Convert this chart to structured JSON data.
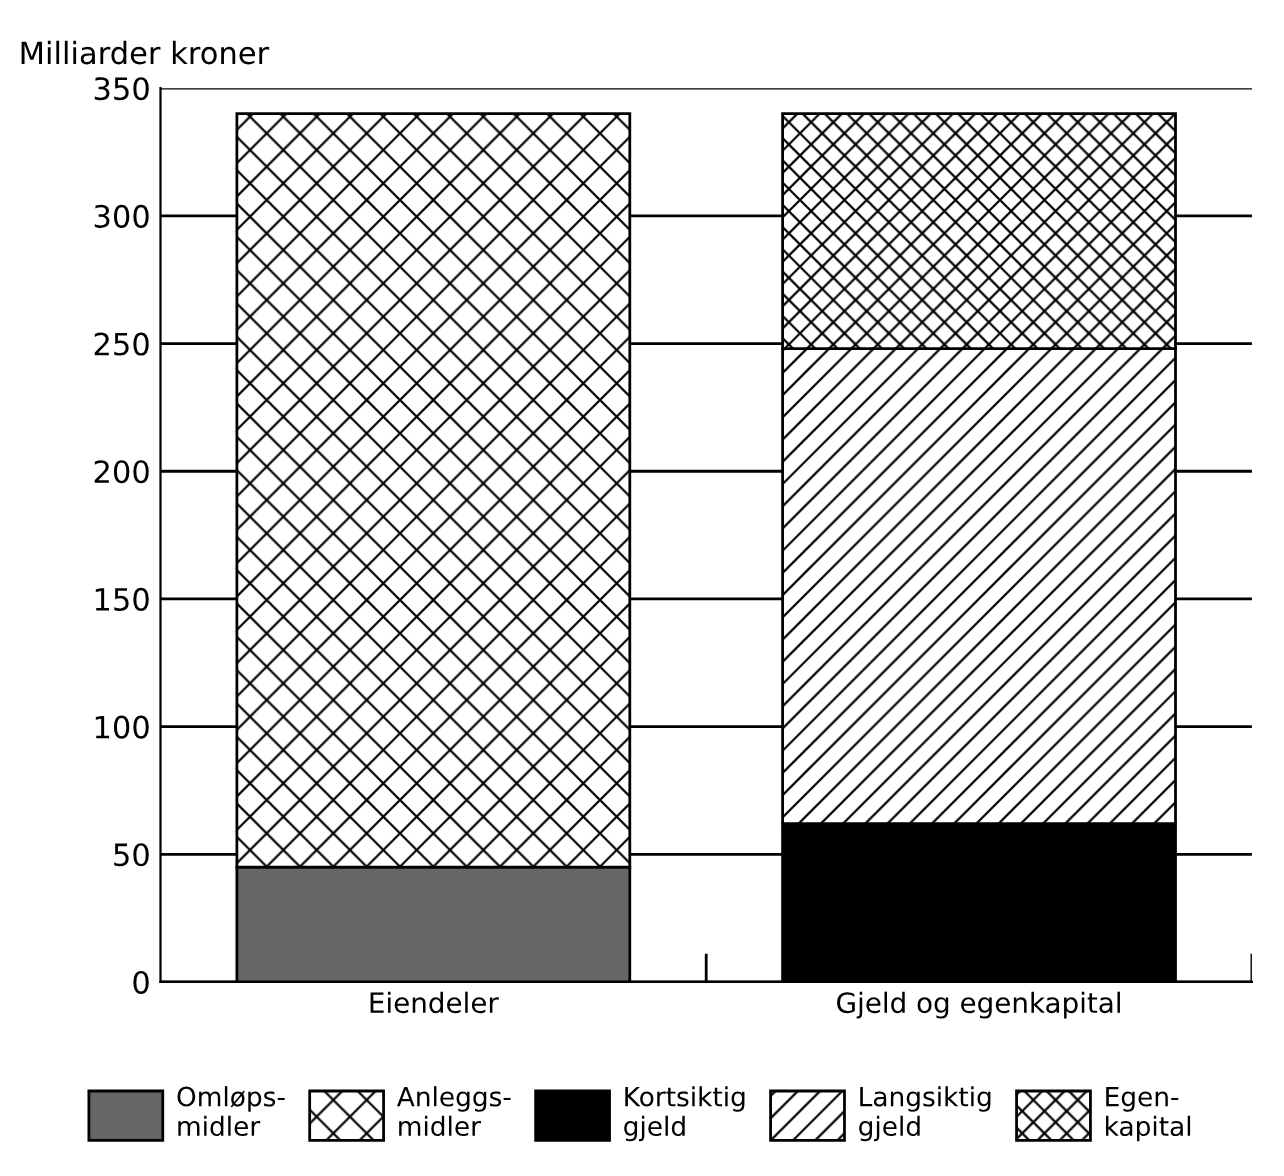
{
  "chart_data": {
    "type": "bar",
    "stacked": true,
    "ylabel": "Milliarder kroner",
    "categories": [
      "Eiendeler",
      "Gjeld og egenkapital"
    ],
    "series": [
      {
        "name": "Omløps-\nmidler",
        "color": "#666666",
        "values": [
          45,
          null
        ]
      },
      {
        "name": "Anleggs-\nmidler",
        "color": "#000000",
        "values": [
          295,
          null
        ]
      },
      {
        "name": "Kortsiktig\ngjeld",
        "color": "#000000",
        "values": [
          null,
          62
        ]
      },
      {
        "name": "Langsiktig\ngjeld",
        "color": "#000000",
        "values": [
          null,
          186
        ]
      },
      {
        "name": "Egen-\nkapital",
        "color": "#000000",
        "values": [
          null,
          92
        ]
      }
    ],
    "ylim": [
      0,
      350
    ],
    "yticks": [
      0,
      50,
      100,
      150,
      200,
      250,
      300,
      350
    ],
    "grid": "y",
    "legend": "bottom"
  }
}
